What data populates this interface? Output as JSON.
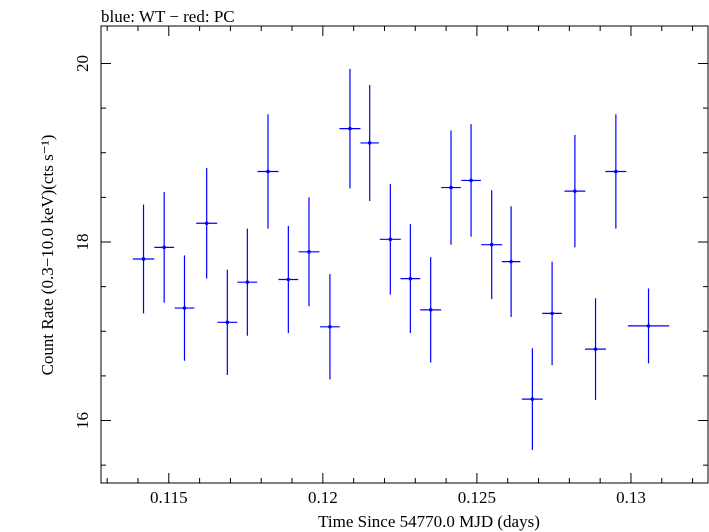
{
  "chart_data": {
    "type": "scatter",
    "title": "blue: WT − red: PC",
    "xlabel": "Time Since 54770.0 MJD (days)",
    "ylabel": "Count Rate (0.3−10.0 keV)(cts s⁻¹)",
    "xlim": [
      0.1128,
      0.1325
    ],
    "ylim": [
      15.3,
      20.42
    ],
    "x_ticks": [
      0.115,
      0.12,
      0.125,
      0.13
    ],
    "x_tick_labels": [
      "0.115",
      "0.12",
      "0.125",
      "0.13"
    ],
    "y_ticks": [
      16,
      18,
      20
    ],
    "y_tick_labels": [
      "16",
      "18",
      "20"
    ],
    "grid": false,
    "series": [
      {
        "color": "#0000ff",
        "points": [
          {
            "x": 0.11418,
            "xerr": 0.00035,
            "y": 17.81,
            "yerr": 0.61
          },
          {
            "x": 0.11485,
            "xerr": 0.00032,
            "y": 17.94,
            "yerr": 0.62
          },
          {
            "x": 0.11551,
            "xerr": 0.00032,
            "y": 17.26,
            "yerr": 0.59
          },
          {
            "x": 0.11623,
            "xerr": 0.00034,
            "y": 18.21,
            "yerr": 0.62
          },
          {
            "x": 0.1169,
            "xerr": 0.00032,
            "y": 17.1,
            "yerr": 0.59
          },
          {
            "x": 0.11755,
            "xerr": 0.00032,
            "y": 17.55,
            "yerr": 0.6
          },
          {
            "x": 0.11822,
            "xerr": 0.00034,
            "y": 18.79,
            "yerr": 0.64
          },
          {
            "x": 0.11888,
            "xerr": 0.00032,
            "y": 17.58,
            "yerr": 0.6
          },
          {
            "x": 0.11955,
            "xerr": 0.00034,
            "y": 17.89,
            "yerr": 0.61
          },
          {
            "x": 0.12023,
            "xerr": 0.00032,
            "y": 17.05,
            "yerr": 0.59
          },
          {
            "x": 0.12088,
            "xerr": 0.00034,
            "y": 19.27,
            "yerr": 0.67
          },
          {
            "x": 0.12152,
            "xerr": 0.0003,
            "y": 19.11,
            "yerr": 0.65
          },
          {
            "x": 0.12219,
            "xerr": 0.00034,
            "y": 18.03,
            "yerr": 0.62
          },
          {
            "x": 0.12284,
            "xerr": 0.00032,
            "y": 17.59,
            "yerr": 0.61
          },
          {
            "x": 0.1235,
            "xerr": 0.00034,
            "y": 17.24,
            "yerr": 0.59
          },
          {
            "x": 0.12416,
            "xerr": 0.00032,
            "y": 18.61,
            "yerr": 0.64
          },
          {
            "x": 0.12481,
            "xerr": 0.00032,
            "y": 18.69,
            "yerr": 0.63
          },
          {
            "x": 0.12548,
            "xerr": 0.00034,
            "y": 17.97,
            "yerr": 0.61
          },
          {
            "x": 0.12611,
            "xerr": 0.0003,
            "y": 17.78,
            "yerr": 0.62
          },
          {
            "x": 0.1268,
            "xerr": 0.00034,
            "y": 16.24,
            "yerr": 0.57
          },
          {
            "x": 0.12744,
            "xerr": 0.00032,
            "y": 17.2,
            "yerr": 0.58
          },
          {
            "x": 0.12818,
            "xerr": 0.00034,
            "y": 18.57,
            "yerr": 0.63
          },
          {
            "x": 0.12885,
            "xerr": 0.00034,
            "y": 16.8,
            "yerr": 0.57
          },
          {
            "x": 0.12951,
            "xerr": 0.00034,
            "y": 18.79,
            "yerr": 0.64
          },
          {
            "x": 0.13057,
            "xerr": 0.00067,
            "y": 17.06,
            "yerr": 0.42
          }
        ]
      }
    ]
  }
}
